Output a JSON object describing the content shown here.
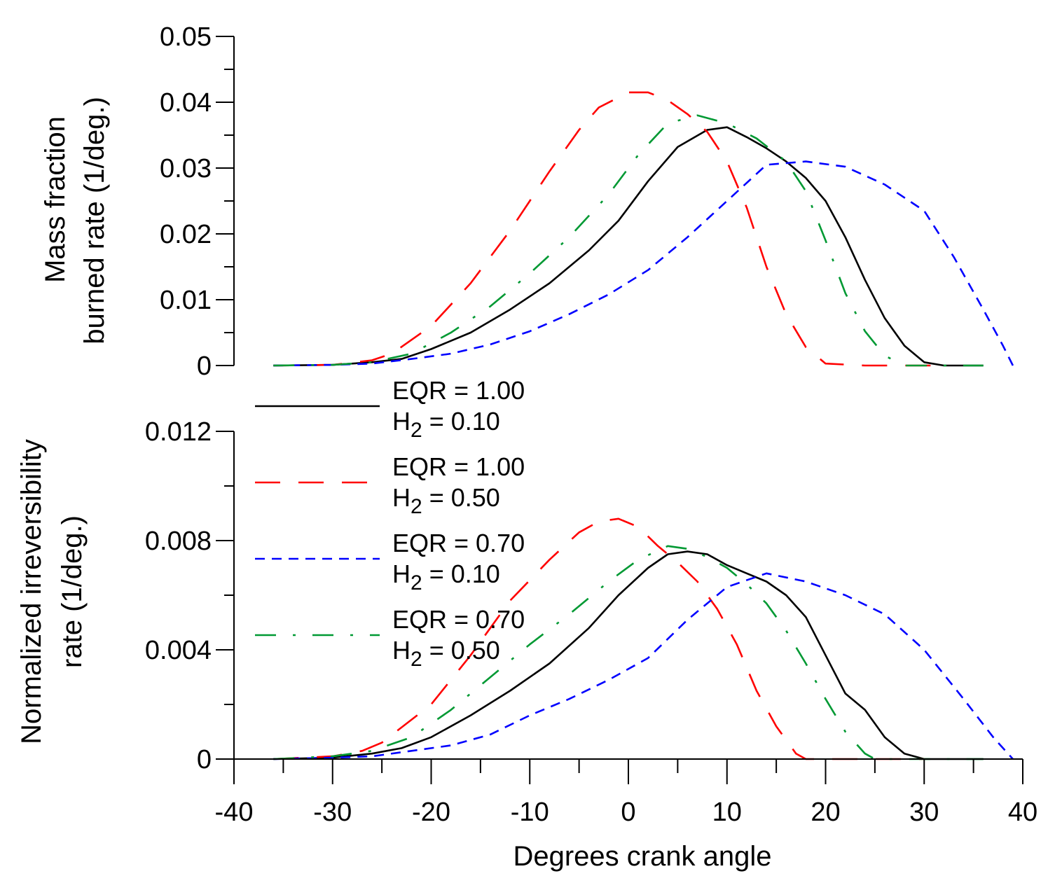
{
  "chart_data": [
    {
      "type": "line",
      "panel": "top",
      "ylabel_line1": "Mass fraction",
      "ylabel_line2": "burned rate (1/deg.)",
      "xlim": [
        -40,
        40
      ],
      "ylim": [
        0,
        0.05
      ],
      "yticks": [
        "0",
        "0.01",
        "0.02",
        "0.03",
        "0.04",
        "0.05"
      ],
      "series": [
        {
          "name": "EQR = 1.00, H2 = 0.10",
          "color": "#000000",
          "x": [
            -36,
            -30,
            -26,
            -23,
            -20,
            -16,
            -12,
            -8,
            -4,
            -1,
            2,
            5,
            8,
            10,
            12,
            14,
            16,
            18,
            20,
            22,
            24,
            26,
            28,
            30,
            32,
            36
          ],
          "y": [
            0,
            0.0001,
            0.0005,
            0.001,
            0.0025,
            0.005,
            0.0085,
            0.0125,
            0.0175,
            0.022,
            0.028,
            0.0332,
            0.0358,
            0.0362,
            0.0347,
            0.033,
            0.031,
            0.0285,
            0.025,
            0.0195,
            0.013,
            0.0072,
            0.003,
            0.0005,
            0,
            0
          ]
        },
        {
          "name": "EQR = 1.00, H2 = 0.50",
          "color": "#ff0000",
          "x": [
            -36,
            -30,
            -26,
            -24,
            -20,
            -16,
            -12,
            -8,
            -5,
            -3,
            0,
            2,
            4,
            6,
            8,
            10,
            12,
            14,
            16,
            18,
            20,
            24,
            28,
            32
          ],
          "y": [
            0,
            0.0001,
            0.0008,
            0.0018,
            0.006,
            0.0125,
            0.0205,
            0.0295,
            0.0358,
            0.0392,
            0.0415,
            0.0415,
            0.0403,
            0.0382,
            0.0355,
            0.031,
            0.024,
            0.015,
            0.0078,
            0.0028,
            0.0003,
            0,
            0,
            0
          ]
        },
        {
          "name": "EQR = 0.70, H2 = 0.10",
          "color": "#0000ff",
          "x": [
            -36,
            -30,
            -26,
            -22,
            -18,
            -14,
            -10,
            -6,
            -2,
            2,
            6,
            10,
            14,
            18,
            22,
            26,
            30,
            33,
            36,
            38,
            39
          ],
          "y": [
            0,
            0.0001,
            0.0003,
            0.001,
            0.0018,
            0.0032,
            0.0052,
            0.0078,
            0.0108,
            0.0145,
            0.0195,
            0.025,
            0.0305,
            0.031,
            0.0302,
            0.0275,
            0.0235,
            0.0165,
            0.0085,
            0.003,
            0
          ]
        },
        {
          "name": "EQR = 0.70, H2 = 0.50",
          "color": "#009933",
          "x": [
            -36,
            -30,
            -26,
            -22,
            -18,
            -14,
            -10,
            -6,
            -2,
            1,
            4,
            7,
            10,
            13,
            16,
            18,
            20,
            22,
            24,
            26,
            28,
            32,
            36
          ],
          "y": [
            0,
            0.0001,
            0.0005,
            0.0018,
            0.005,
            0.009,
            0.014,
            0.0195,
            0.026,
            0.032,
            0.0368,
            0.038,
            0.0368,
            0.0345,
            0.031,
            0.0265,
            0.019,
            0.011,
            0.0052,
            0.0015,
            0,
            0,
            0
          ]
        }
      ]
    },
    {
      "type": "line",
      "panel": "bottom",
      "ylabel_line1": "Normalized irreversibility",
      "ylabel_line2": "rate (1/deg.)",
      "xlabel": "Degrees crank angle",
      "xlim": [
        -40,
        40
      ],
      "ylim": [
        0,
        0.012
      ],
      "xticks": [
        "-40",
        "-30",
        "-20",
        "-10",
        "0",
        "10",
        "20",
        "30",
        "40"
      ],
      "yticks": [
        "0",
        "0.004",
        "0.008",
        "0.012"
      ],
      "series": [
        {
          "name": "EQR = 1.00, H2 = 0.10",
          "color": "#000000",
          "x": [
            -36,
            -30,
            -26,
            -23,
            -20,
            -16,
            -12,
            -8,
            -4,
            -1,
            2,
            4,
            6,
            8,
            10,
            12,
            14,
            16,
            18,
            20,
            22,
            24,
            26,
            28,
            30,
            32,
            36
          ],
          "y": [
            0,
            5e-05,
            0.0002,
            0.0004,
            0.0008,
            0.0016,
            0.0025,
            0.0035,
            0.0048,
            0.006,
            0.007,
            0.0075,
            0.0076,
            0.0075,
            0.0071,
            0.0068,
            0.0065,
            0.006,
            0.0052,
            0.0038,
            0.0024,
            0.0018,
            0.0008,
            0.0002,
            0,
            0,
            0
          ]
        },
        {
          "name": "EQR = 1.00, H2 = 0.50",
          "color": "#ff0000",
          "x": [
            -36,
            -30,
            -27,
            -25,
            -20,
            -16,
            -12,
            -8,
            -5,
            -3,
            -1,
            1,
            3,
            5,
            7,
            9,
            11,
            13,
            15,
            17,
            18,
            22,
            30
          ],
          "y": [
            0,
            0.0001,
            0.0003,
            0.0006,
            0.002,
            0.0038,
            0.0058,
            0.0073,
            0.0083,
            0.0087,
            0.0088,
            0.0085,
            0.0078,
            0.0072,
            0.0065,
            0.0055,
            0.0042,
            0.0025,
            0.0012,
            0.0002,
            0,
            0,
            0
          ]
        },
        {
          "name": "EQR = 0.70, H2 = 0.10",
          "color": "#0000ff",
          "x": [
            -36,
            -30,
            -26,
            -22,
            -18,
            -14,
            -10,
            -6,
            -2,
            2,
            6,
            10,
            14,
            18,
            22,
            26,
            30,
            34,
            37,
            39
          ],
          "y": [
            0,
            5e-05,
            0.0001,
            0.0003,
            0.0005,
            0.0009,
            0.0016,
            0.0022,
            0.0029,
            0.0037,
            0.0051,
            0.0063,
            0.0068,
            0.0065,
            0.006,
            0.0053,
            0.004,
            0.0022,
            0.0008,
            0
          ]
        },
        {
          "name": "EQR = 0.70, H2 = 0.50",
          "color": "#009933",
          "x": [
            -36,
            -30,
            -26,
            -22,
            -18,
            -14,
            -10,
            -6,
            -2,
            1,
            4,
            6,
            8,
            10,
            12,
            14,
            16,
            18,
            20,
            22,
            24,
            25,
            30,
            36
          ],
          "y": [
            0,
            0.0001,
            0.0003,
            0.0008,
            0.0018,
            0.003,
            0.0042,
            0.0053,
            0.0065,
            0.0073,
            0.0078,
            0.0077,
            0.0074,
            0.007,
            0.0064,
            0.0057,
            0.0047,
            0.0035,
            0.0022,
            0.001,
            0.0002,
            0,
            0,
            0
          ]
        }
      ]
    }
  ],
  "legend": [
    {
      "line1": "EQR = 1.00",
      "line2_prefix": "H",
      "line2_sub": "2",
      "line2_suffix": " = 0.10",
      "color": "#000000",
      "dash": "solid"
    },
    {
      "line1": "EQR = 1.00",
      "line2_prefix": "H",
      "line2_sub": "2",
      "line2_suffix": " = 0.50",
      "color": "#ff0000",
      "dash": "long-dash"
    },
    {
      "line1": "EQR = 0.70",
      "line2_prefix": "H",
      "line2_sub": "2",
      "line2_suffix": " = 0.10",
      "color": "#0000ff",
      "dash": "short-dash"
    },
    {
      "line1": "EQR = 0.70",
      "line2_prefix": "H",
      "line2_sub": "2",
      "line2_suffix": " = 0.50",
      "color": "#009933",
      "dash": "dash-dot"
    }
  ]
}
